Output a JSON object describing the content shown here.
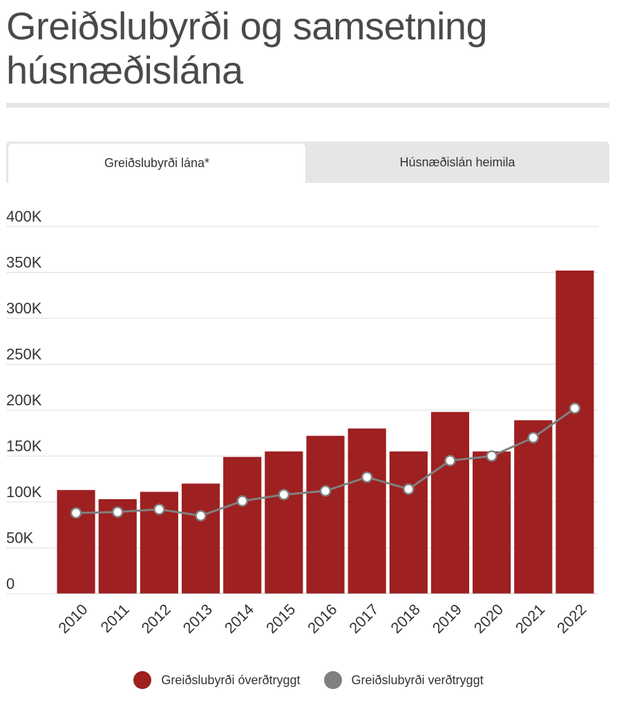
{
  "title": "Greiðslubyrði og samsetning húsnæðislána",
  "tabs": [
    {
      "label": "Greiðslubyrði lána*",
      "active": true
    },
    {
      "label": "Húsnæðislán heimila",
      "active": false
    }
  ],
  "colors": {
    "bar": "#9e2021",
    "line": "#808080",
    "point_fill": "#ffffff",
    "grid": "#dddddd"
  },
  "chart_data": {
    "type": "bar",
    "categories": [
      "2010",
      "2011",
      "2012",
      "2013",
      "2014",
      "2015",
      "2016",
      "2017",
      "2018",
      "2019",
      "2020",
      "2021",
      "2022"
    ],
    "y_tick_labels": [
      "0",
      "50K",
      "100K",
      "150K",
      "200K",
      "250K",
      "300K",
      "350K",
      "400K"
    ],
    "ylim": [
      0,
      400000
    ],
    "grid": true,
    "legend_position": "bottom",
    "series": [
      {
        "name": "Greiðslubyrði óverðtryggt",
        "type": "bar",
        "values": [
          113000,
          103000,
          111000,
          120000,
          149000,
          155000,
          172000,
          180000,
          155000,
          198000,
          155000,
          189000,
          352000
        ]
      },
      {
        "name": "Greiðslubyrði verðtryggt",
        "type": "line",
        "values": [
          88000,
          89000,
          92000,
          85000,
          101000,
          108000,
          112000,
          127000,
          114000,
          145000,
          150000,
          170000,
          202000
        ]
      }
    ]
  }
}
